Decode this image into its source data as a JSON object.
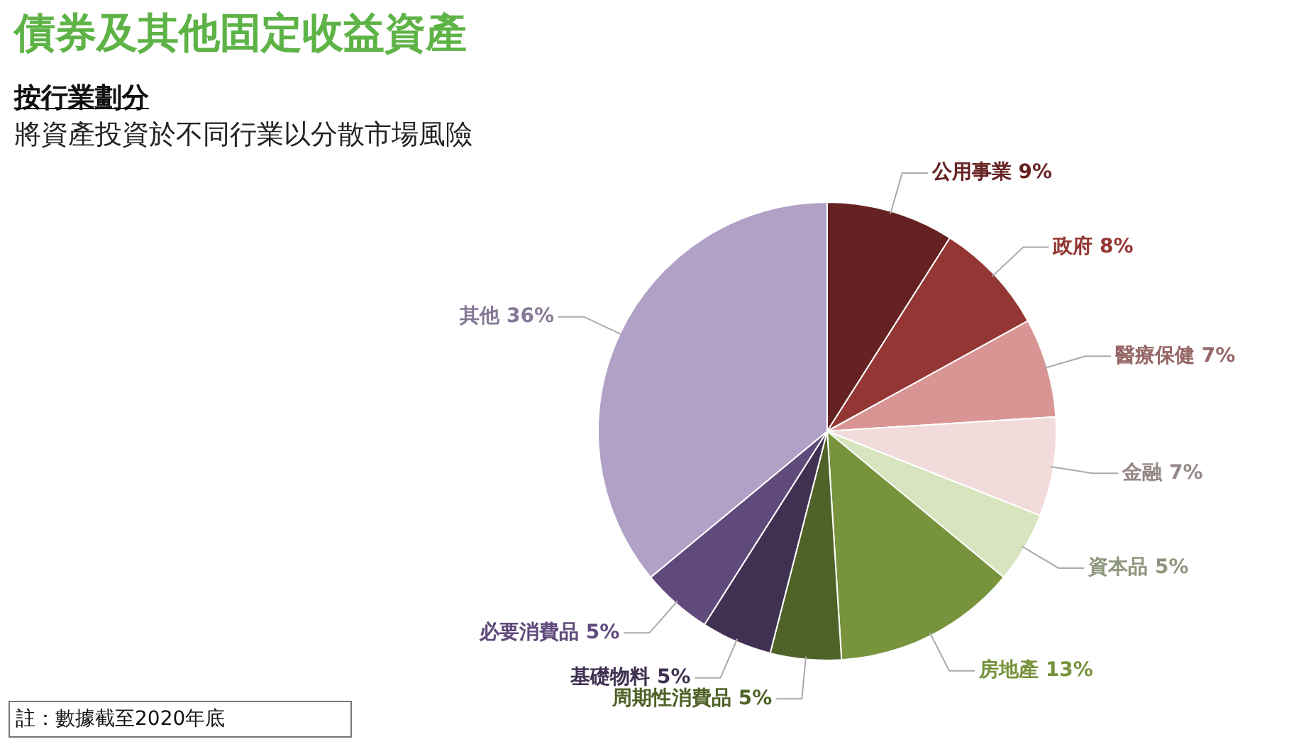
{
  "chart_data": {
    "type": "pie",
    "title": "債券及其他固定收益資產",
    "subtitle": "按行業劃分",
    "annotations": [
      "將資產投資於不同行業以分散市場風險",
      "註：數據截至2020年底"
    ],
    "categories": [
      "公用事業",
      "政府",
      "醫療保健",
      "金融",
      "資本品",
      "房地產",
      "周期性消費品",
      "基礎物料",
      "必要消費品",
      "其他"
    ],
    "values": [
      9,
      8,
      7,
      7,
      5,
      13,
      5,
      5,
      5,
      36
    ],
    "value_labels": [
      "9%",
      "8%",
      "7%",
      "7%",
      "5%",
      "13%",
      "5%",
      "5%",
      "5%",
      "36%"
    ],
    "colors": [
      "#662222",
      "#933634",
      "#d99594",
      "#f2dcdb",
      "#d7e4bd",
      "#77933c",
      "#4f6228",
      "#403152",
      "#604a7b",
      "#b2a1c7"
    ]
  }
}
